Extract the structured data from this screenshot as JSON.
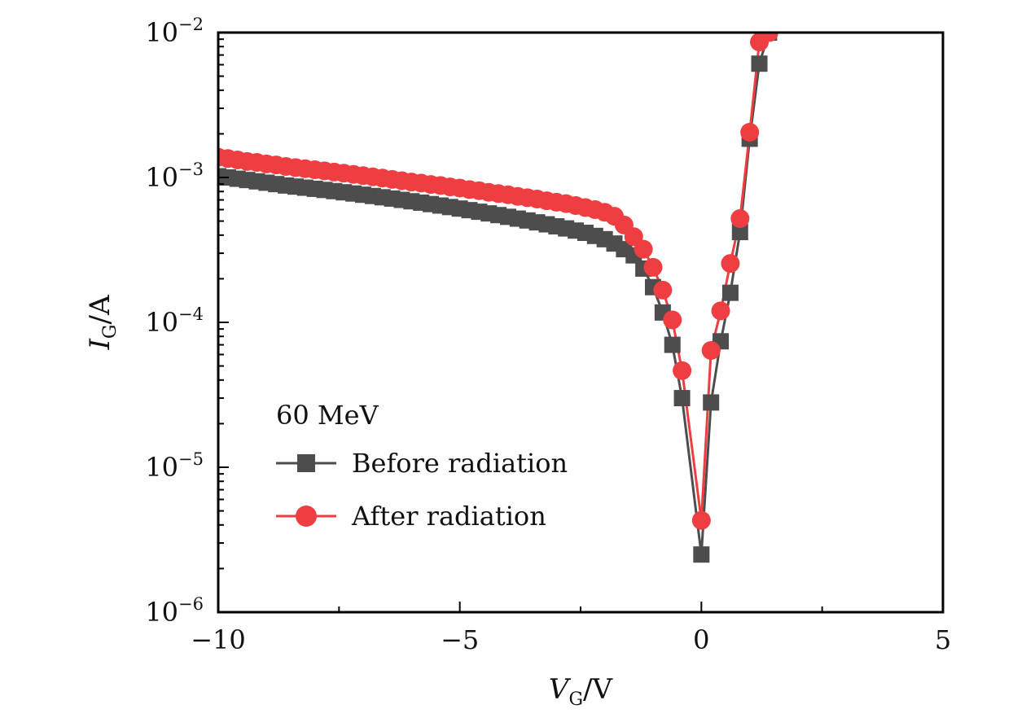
{
  "chart_data": {
    "type": "line",
    "title": "",
    "xlabel": {
      "main": "V",
      "sub": "G",
      "unit": "/V"
    },
    "ylabel": {
      "main": "I",
      "sub": "G",
      "unit": "/A"
    },
    "xlim": [
      -10,
      5
    ],
    "ylim": [
      1e-06,
      0.01
    ],
    "yscale": "log",
    "grid": false,
    "x_ticks": [
      {
        "value": -10,
        "label": "−10"
      },
      {
        "value": -5,
        "label": "−5"
      },
      {
        "value": 0,
        "label": "0"
      },
      {
        "value": 5,
        "label": "5"
      }
    ],
    "x_minor_ticks": [
      -7.5,
      -2.5,
      2.5
    ],
    "y_ticks": [
      {
        "value": 0.01,
        "base": "10",
        "exp": "−2"
      },
      {
        "value": 0.001,
        "base": "10",
        "exp": "−3"
      },
      {
        "value": 0.0001,
        "base": "10",
        "exp": "−4"
      },
      {
        "value": 1e-05,
        "base": "10",
        "exp": "−5"
      },
      {
        "value": 1e-06,
        "base": "10",
        "exp": "−6"
      }
    ],
    "legend": {
      "title": "60 MeV",
      "placement": "lower-left"
    },
    "series": [
      {
        "name": "Before radiation",
        "marker": "square",
        "color": "#4d4d4d",
        "points": [
          [
            -10.0,
            0.00102
          ],
          [
            -9.8,
            0.001
          ],
          [
            -9.6,
            0.00098
          ],
          [
            -9.4,
            0.00096
          ],
          [
            -9.2,
            0.00094
          ],
          [
            -9.0,
            0.00092
          ],
          [
            -8.8,
            0.0009
          ],
          [
            -8.6,
            0.00088
          ],
          [
            -8.4,
            0.000865
          ],
          [
            -8.2,
            0.00085
          ],
          [
            -8.0,
            0.000835
          ],
          [
            -7.8,
            0.00082
          ],
          [
            -7.6,
            0.000805
          ],
          [
            -7.4,
            0.00079
          ],
          [
            -7.2,
            0.000775
          ],
          [
            -7.0,
            0.00076
          ],
          [
            -6.8,
            0.000745
          ],
          [
            -6.6,
            0.00073
          ],
          [
            -6.4,
            0.000715
          ],
          [
            -6.2,
            0.0007
          ],
          [
            -6.0,
            0.000685
          ],
          [
            -5.8,
            0.00067
          ],
          [
            -5.6,
            0.000655
          ],
          [
            -5.4,
            0.00064
          ],
          [
            -5.2,
            0.000625
          ],
          [
            -5.0,
            0.00061
          ],
          [
            -4.8,
            0.000595
          ],
          [
            -4.6,
            0.00058
          ],
          [
            -4.4,
            0.000565
          ],
          [
            -4.2,
            0.00055
          ],
          [
            -4.0,
            0.000535
          ],
          [
            -3.8,
            0.00052
          ],
          [
            -3.6,
            0.000505
          ],
          [
            -3.4,
            0.00049
          ],
          [
            -3.2,
            0.000475
          ],
          [
            -3.0,
            0.00046
          ],
          [
            -2.8,
            0.000445
          ],
          [
            -2.6,
            0.00043
          ],
          [
            -2.4,
            0.000415
          ],
          [
            -2.2,
            0.000395
          ],
          [
            -2.0,
            0.000375
          ],
          [
            -1.8,
            0.00035
          ],
          [
            -1.6,
            0.00032
          ],
          [
            -1.4,
            0.00029
          ],
          [
            -1.2,
            0.000235
          ],
          [
            -1.0,
            0.000175
          ],
          [
            -0.8,
            0.000117
          ],
          [
            -0.6,
            7e-05
          ],
          [
            -0.4,
            3e-05
          ],
          [
            0.0,
            2.5e-06
          ],
          [
            0.2,
            2.8e-05
          ],
          [
            0.4,
            7.4e-05
          ],
          [
            0.6,
            0.00016
          ],
          [
            0.8,
            0.00042
          ],
          [
            1.0,
            0.00185
          ],
          [
            1.2,
            0.0061
          ],
          [
            1.4,
            0.01
          ]
        ]
      },
      {
        "name": "After radiation",
        "marker": "circle",
        "color": "#ee3e41",
        "points": [
          [
            -10.0,
            0.00138
          ],
          [
            -9.8,
            0.00135
          ],
          [
            -9.6,
            0.00132
          ],
          [
            -9.4,
            0.00129
          ],
          [
            -9.2,
            0.00127
          ],
          [
            -9.0,
            0.00124
          ],
          [
            -8.8,
            0.00122
          ],
          [
            -8.6,
            0.00119
          ],
          [
            -8.4,
            0.00117
          ],
          [
            -8.2,
            0.00115
          ],
          [
            -8.0,
            0.00113
          ],
          [
            -7.8,
            0.00111
          ],
          [
            -7.6,
            0.00109
          ],
          [
            -7.4,
            0.00107
          ],
          [
            -7.2,
            0.00105
          ],
          [
            -7.0,
            0.00103
          ],
          [
            -6.8,
            0.00101
          ],
          [
            -6.6,
            0.00099
          ],
          [
            -6.4,
            0.00097
          ],
          [
            -6.2,
            0.00095
          ],
          [
            -6.0,
            0.00093
          ],
          [
            -5.8,
            0.000915
          ],
          [
            -5.6,
            0.000895
          ],
          [
            -5.4,
            0.00088
          ],
          [
            -5.2,
            0.00086
          ],
          [
            -5.0,
            0.000845
          ],
          [
            -4.8,
            0.000825
          ],
          [
            -4.6,
            0.00081
          ],
          [
            -4.4,
            0.00079
          ],
          [
            -4.2,
            0.000775
          ],
          [
            -4.0,
            0.00076
          ],
          [
            -3.8,
            0.00074
          ],
          [
            -3.6,
            0.000725
          ],
          [
            -3.4,
            0.00071
          ],
          [
            -3.2,
            0.00069
          ],
          [
            -3.0,
            0.000675
          ],
          [
            -2.8,
            0.00066
          ],
          [
            -2.6,
            0.00064
          ],
          [
            -2.4,
            0.00062
          ],
          [
            -2.2,
            0.0006
          ],
          [
            -2.0,
            0.000575
          ],
          [
            -1.8,
            0.00054
          ],
          [
            -1.6,
            0.00047
          ],
          [
            -1.4,
            0.00039
          ],
          [
            -1.2,
            0.00032
          ],
          [
            -1.0,
            0.00024
          ],
          [
            -0.8,
            0.000167
          ],
          [
            -0.6,
            0.000104
          ],
          [
            -0.4,
            4.65e-05
          ],
          [
            0.0,
            4.3e-06
          ],
          [
            0.2,
            6.4e-05
          ],
          [
            0.4,
            0.00012
          ],
          [
            0.6,
            0.000255
          ],
          [
            0.8,
            0.00052
          ],
          [
            1.0,
            0.00205
          ],
          [
            1.2,
            0.0086
          ],
          [
            1.4,
            0.01
          ]
        ]
      }
    ]
  }
}
